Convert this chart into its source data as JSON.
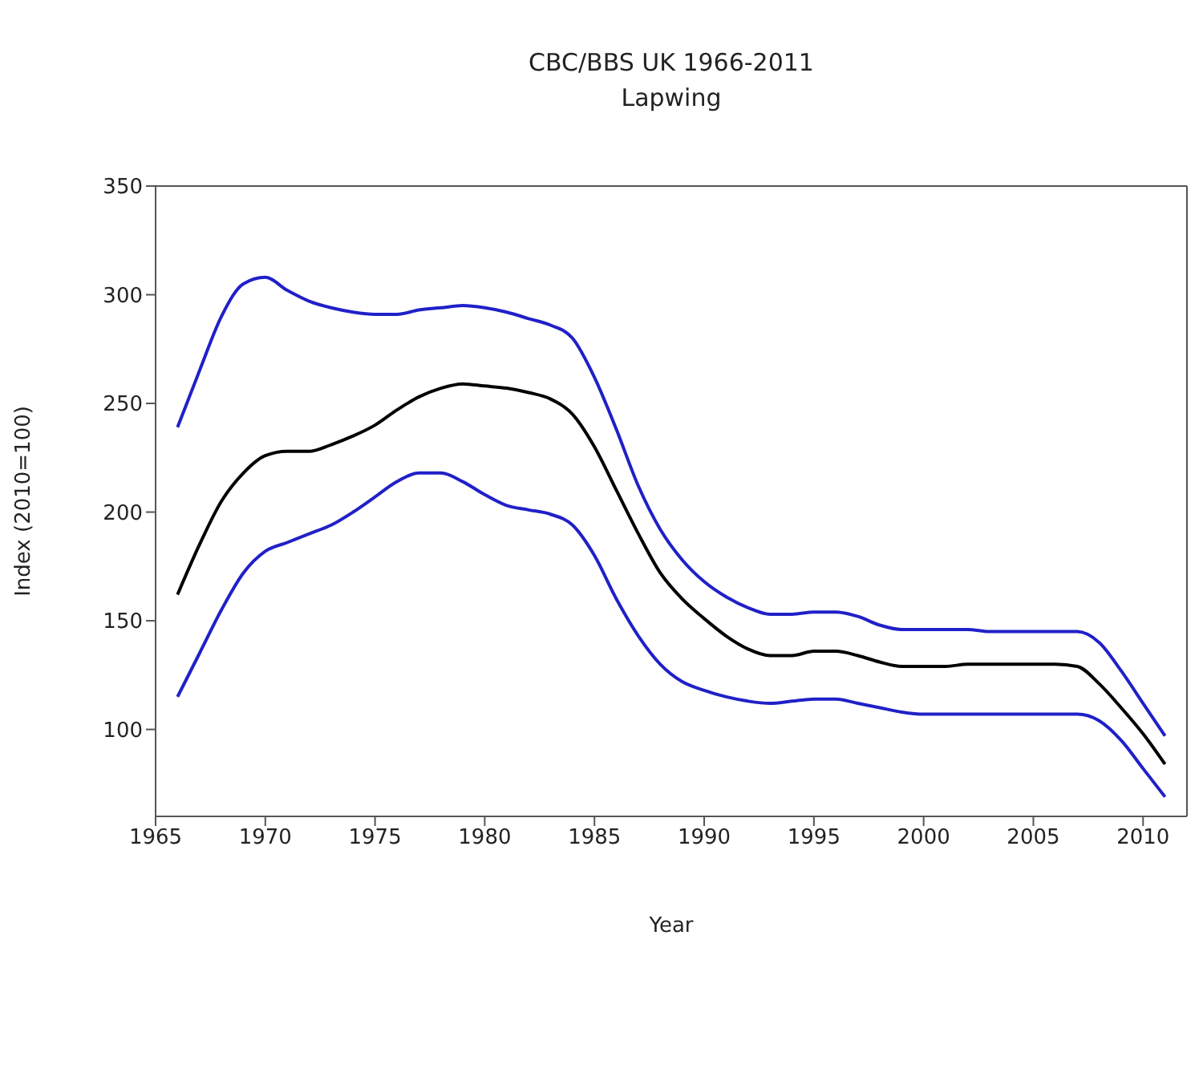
{
  "chart_data": {
    "type": "line",
    "title": "CBC/BBS UK 1966-2011",
    "subtitle": "Lapwing",
    "xlabel": "Year",
    "ylabel": "Index (2010=100)",
    "x": [
      1966,
      1967,
      1968,
      1969,
      1970,
      1971,
      1972,
      1973,
      1974,
      1975,
      1976,
      1977,
      1978,
      1979,
      1980,
      1981,
      1982,
      1983,
      1984,
      1985,
      1986,
      1987,
      1988,
      1989,
      1990,
      1991,
      1992,
      1993,
      1994,
      1995,
      1996,
      1997,
      1998,
      1999,
      2000,
      2001,
      2002,
      2003,
      2004,
      2005,
      2006,
      2007,
      2008,
      2009,
      2010,
      2011
    ],
    "series": [
      {
        "color": "#2020c8",
        "values": [
          239,
          265,
          290,
          305,
          308,
          302,
          297,
          294,
          292,
          291,
          291,
          293,
          294,
          295,
          294,
          292,
          289,
          286,
          280,
          262,
          238,
          212,
          192,
          178,
          168,
          161,
          156,
          153,
          153,
          154,
          154,
          152,
          148,
          146,
          146,
          146,
          146,
          145,
          145,
          145,
          145,
          145,
          140,
          127,
          112,
          97
        ]
      },
      {
        "color": "#000000",
        "values": [
          162,
          185,
          205,
          218,
          226,
          228,
          228,
          231,
          235,
          240,
          247,
          253,
          257,
          259,
          258,
          257,
          255,
          252,
          245,
          230,
          210,
          190,
          172,
          160,
          151,
          143,
          137,
          134,
          134,
          136,
          136,
          134,
          131,
          129,
          129,
          129,
          130,
          130,
          130,
          130,
          130,
          129,
          121,
          110,
          98,
          84
        ]
      },
      {
        "color": "#2020c8",
        "values": [
          115,
          135,
          155,
          172,
          182,
          186,
          190,
          194,
          200,
          207,
          214,
          218,
          218,
          214,
          208,
          203,
          201,
          199,
          194,
          180,
          160,
          143,
          130,
          122,
          118,
          115,
          113,
          112,
          113,
          114,
          114,
          112,
          110,
          108,
          107,
          107,
          107,
          107,
          107,
          107,
          107,
          107,
          104,
          95,
          82,
          69
        ]
      }
    ],
    "xlim": [
      1965,
      2012
    ],
    "xticks": [
      1965,
      1970,
      1975,
      1980,
      1985,
      1990,
      1995,
      2000,
      2005,
      2010
    ],
    "ylim": [
      60,
      350
    ],
    "yticks": [
      100,
      150,
      200,
      250,
      300,
      350
    ],
    "grid": false,
    "legend": false,
    "marker": "none",
    "line_style": "solid"
  }
}
